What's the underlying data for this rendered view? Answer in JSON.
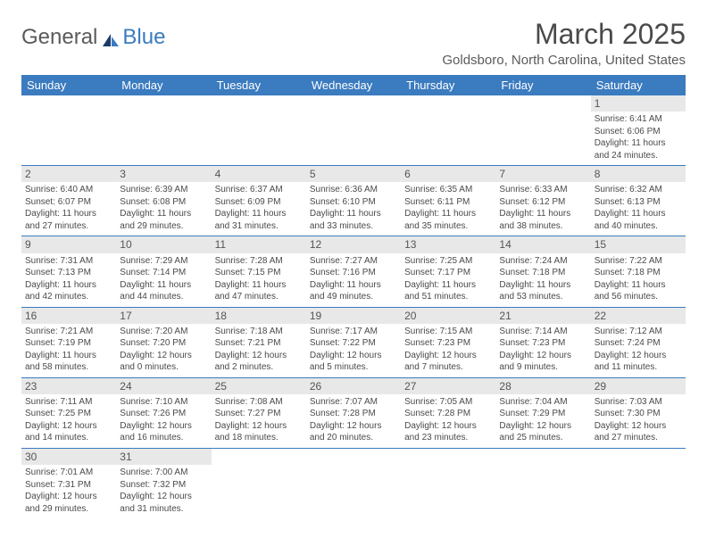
{
  "logo": {
    "text1": "General",
    "text2": "Blue"
  },
  "title": "March 2025",
  "location": "Goldsboro, North Carolina, United States",
  "day_headers": [
    "Sunday",
    "Monday",
    "Tuesday",
    "Wednesday",
    "Thursday",
    "Friday",
    "Saturday"
  ],
  "colors": {
    "header_bg": "#3b7bbf",
    "header_text": "#ffffff",
    "daynum_bg": "#e8e8e8",
    "border": "#3b7bbf"
  },
  "weeks": [
    [
      null,
      null,
      null,
      null,
      null,
      null,
      {
        "n": "1",
        "sr": "6:41 AM",
        "ss": "6:06 PM",
        "dl": "11 hours and 24 minutes."
      }
    ],
    [
      {
        "n": "2",
        "sr": "6:40 AM",
        "ss": "6:07 PM",
        "dl": "11 hours and 27 minutes."
      },
      {
        "n": "3",
        "sr": "6:39 AM",
        "ss": "6:08 PM",
        "dl": "11 hours and 29 minutes."
      },
      {
        "n": "4",
        "sr": "6:37 AM",
        "ss": "6:09 PM",
        "dl": "11 hours and 31 minutes."
      },
      {
        "n": "5",
        "sr": "6:36 AM",
        "ss": "6:10 PM",
        "dl": "11 hours and 33 minutes."
      },
      {
        "n": "6",
        "sr": "6:35 AM",
        "ss": "6:11 PM",
        "dl": "11 hours and 35 minutes."
      },
      {
        "n": "7",
        "sr": "6:33 AM",
        "ss": "6:12 PM",
        "dl": "11 hours and 38 minutes."
      },
      {
        "n": "8",
        "sr": "6:32 AM",
        "ss": "6:13 PM",
        "dl": "11 hours and 40 minutes."
      }
    ],
    [
      {
        "n": "9",
        "sr": "7:31 AM",
        "ss": "7:13 PM",
        "dl": "11 hours and 42 minutes."
      },
      {
        "n": "10",
        "sr": "7:29 AM",
        "ss": "7:14 PM",
        "dl": "11 hours and 44 minutes."
      },
      {
        "n": "11",
        "sr": "7:28 AM",
        "ss": "7:15 PM",
        "dl": "11 hours and 47 minutes."
      },
      {
        "n": "12",
        "sr": "7:27 AM",
        "ss": "7:16 PM",
        "dl": "11 hours and 49 minutes."
      },
      {
        "n": "13",
        "sr": "7:25 AM",
        "ss": "7:17 PM",
        "dl": "11 hours and 51 minutes."
      },
      {
        "n": "14",
        "sr": "7:24 AM",
        "ss": "7:18 PM",
        "dl": "11 hours and 53 minutes."
      },
      {
        "n": "15",
        "sr": "7:22 AM",
        "ss": "7:18 PM",
        "dl": "11 hours and 56 minutes."
      }
    ],
    [
      {
        "n": "16",
        "sr": "7:21 AM",
        "ss": "7:19 PM",
        "dl": "11 hours and 58 minutes."
      },
      {
        "n": "17",
        "sr": "7:20 AM",
        "ss": "7:20 PM",
        "dl": "12 hours and 0 minutes."
      },
      {
        "n": "18",
        "sr": "7:18 AM",
        "ss": "7:21 PM",
        "dl": "12 hours and 2 minutes."
      },
      {
        "n": "19",
        "sr": "7:17 AM",
        "ss": "7:22 PM",
        "dl": "12 hours and 5 minutes."
      },
      {
        "n": "20",
        "sr": "7:15 AM",
        "ss": "7:23 PM",
        "dl": "12 hours and 7 minutes."
      },
      {
        "n": "21",
        "sr": "7:14 AM",
        "ss": "7:23 PM",
        "dl": "12 hours and 9 minutes."
      },
      {
        "n": "22",
        "sr": "7:12 AM",
        "ss": "7:24 PM",
        "dl": "12 hours and 11 minutes."
      }
    ],
    [
      {
        "n": "23",
        "sr": "7:11 AM",
        "ss": "7:25 PM",
        "dl": "12 hours and 14 minutes."
      },
      {
        "n": "24",
        "sr": "7:10 AM",
        "ss": "7:26 PM",
        "dl": "12 hours and 16 minutes."
      },
      {
        "n": "25",
        "sr": "7:08 AM",
        "ss": "7:27 PM",
        "dl": "12 hours and 18 minutes."
      },
      {
        "n": "26",
        "sr": "7:07 AM",
        "ss": "7:28 PM",
        "dl": "12 hours and 20 minutes."
      },
      {
        "n": "27",
        "sr": "7:05 AM",
        "ss": "7:28 PM",
        "dl": "12 hours and 23 minutes."
      },
      {
        "n": "28",
        "sr": "7:04 AM",
        "ss": "7:29 PM",
        "dl": "12 hours and 25 minutes."
      },
      {
        "n": "29",
        "sr": "7:03 AM",
        "ss": "7:30 PM",
        "dl": "12 hours and 27 minutes."
      }
    ],
    [
      {
        "n": "30",
        "sr": "7:01 AM",
        "ss": "7:31 PM",
        "dl": "12 hours and 29 minutes."
      },
      {
        "n": "31",
        "sr": "7:00 AM",
        "ss": "7:32 PM",
        "dl": "12 hours and 31 minutes."
      },
      null,
      null,
      null,
      null,
      null
    ]
  ],
  "labels": {
    "sunrise": "Sunrise: ",
    "sunset": "Sunset: ",
    "daylight": "Daylight: "
  }
}
